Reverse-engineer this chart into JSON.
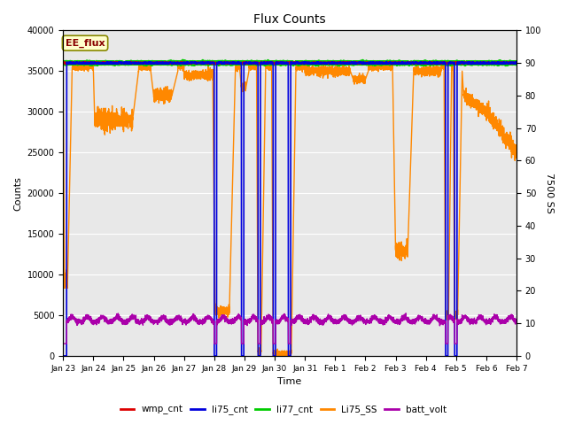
{
  "title": "Flux Counts",
  "xlabel": "Time",
  "ylabel_left": "Counts",
  "ylabel_right": "7500 SS",
  "legend_label": "EE_flux",
  "ylim_left": [
    0,
    40000
  ],
  "ylim_right": [
    0,
    100
  ],
  "bg_color": "#d8d8d8",
  "plot_bg": "#e8e8e8",
  "series": {
    "wmp_cnt": {
      "color": "#dd0000",
      "lw": 1.0
    },
    "li75_cnt": {
      "color": "#0000dd",
      "lw": 1.2
    },
    "li77_cnt": {
      "color": "#00cc00",
      "lw": 2.5
    },
    "Li75_SS": {
      "color": "#ff8800",
      "lw": 1.0
    },
    "batt_volt": {
      "color": "#aa00aa",
      "lw": 1.0
    }
  },
  "xtick_labels": [
    "Jan 23",
    "Jan 24",
    "Jan 25",
    "Jan 26",
    "Jan 27",
    "Jan 28",
    "Jan 29",
    "Jan 30",
    "Jan 31",
    "Feb 1",
    "Feb 2",
    "Feb 3",
    "Feb 4",
    "Feb 5",
    "Feb 6",
    "Feb 7"
  ],
  "yticks_left": [
    0,
    5000,
    10000,
    15000,
    20000,
    25000,
    30000,
    35000,
    40000
  ],
  "yticks_right": [
    0,
    10,
    20,
    30,
    40,
    50,
    60,
    70,
    80,
    90,
    100
  ],
  "n_days": 15
}
